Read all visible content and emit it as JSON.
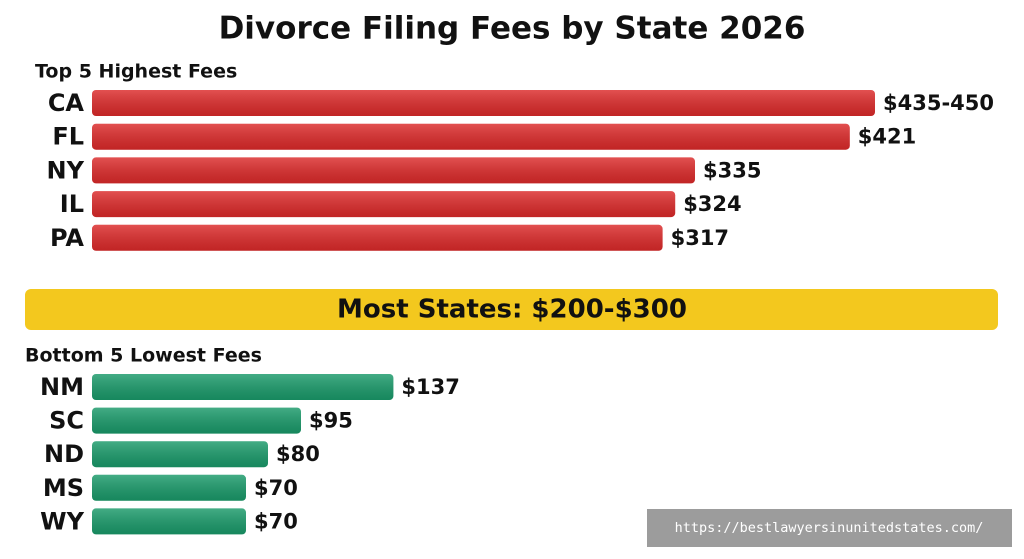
{
  "title": "Divorce Filing Fees by State 2026",
  "banner": "Most States: $200-$300",
  "watermark": "https://bestlawyersinunitedstates.com/",
  "chart_data": [
    {
      "type": "bar",
      "title": "Top 5 Highest Fees",
      "color": "#dc2a2a",
      "categories": [
        "CA",
        "FL",
        "NY",
        "IL",
        "PA"
      ],
      "values": [
        435,
        421,
        335,
        324,
        317
      ],
      "value_labels": [
        "$435-450",
        "$421",
        "$335",
        "$324",
        "$317"
      ]
    },
    {
      "type": "bar",
      "title": "Bottom 5 Lowest Fees",
      "color": "#1a9a6a",
      "categories": [
        "NM",
        "SC",
        "ND",
        "MS",
        "WY"
      ],
      "values": [
        137,
        95,
        80,
        70,
        70
      ],
      "value_labels": [
        "$137",
        "$95",
        "$80",
        "$70",
        "$70"
      ]
    }
  ]
}
